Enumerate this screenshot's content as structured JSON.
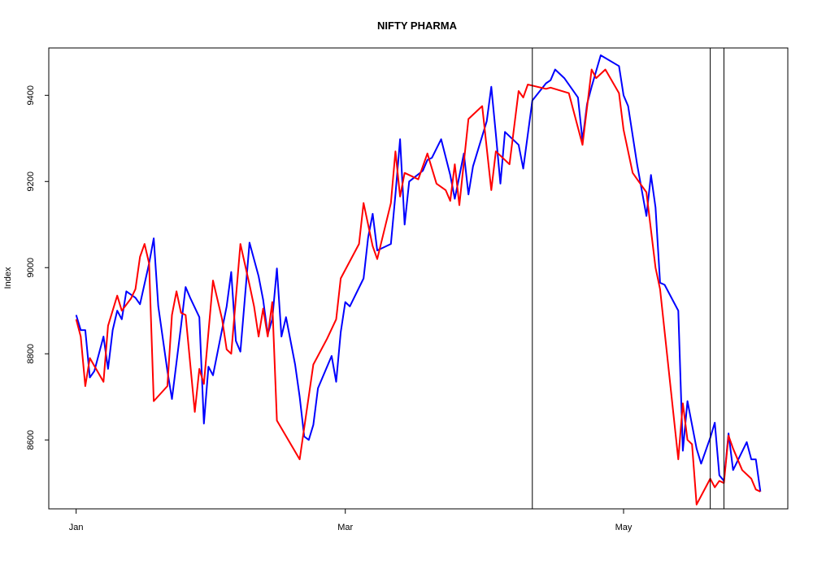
{
  "chart_data": {
    "type": "line",
    "title": "NIFTY PHARMA",
    "ylabel": "Index",
    "xlabel": "",
    "ylim": [
      8440,
      9510
    ],
    "yticks": [
      8600,
      8800,
      9000,
      9200,
      9400
    ],
    "xlim": [
      -6,
      156
    ],
    "xticks": [
      {
        "x": 0,
        "label": "Jan"
      },
      {
        "x": 59,
        "label": "Mar"
      },
      {
        "x": 120,
        "label": "May"
      }
    ],
    "vlines": [
      100,
      139,
      142
    ],
    "series": [
      {
        "color": "#0000ff",
        "points": [
          [
            0,
            8890
          ],
          [
            1,
            8855
          ],
          [
            2,
            8855
          ],
          [
            3,
            8745
          ],
          [
            4,
            8760
          ],
          [
            6,
            8840
          ],
          [
            7,
            8765
          ],
          [
            8,
            8855
          ],
          [
            9,
            8900
          ],
          [
            10,
            8880
          ],
          [
            11,
            8945
          ],
          [
            13,
            8930
          ],
          [
            14,
            8915
          ],
          [
            16,
            9010
          ],
          [
            17,
            9068
          ],
          [
            18,
            8910
          ],
          [
            20,
            8760
          ],
          [
            21,
            8695
          ],
          [
            23,
            8865
          ],
          [
            24,
            8955
          ],
          [
            25,
            8930
          ],
          [
            27,
            8885
          ],
          [
            28,
            8638
          ],
          [
            29,
            8770
          ],
          [
            30,
            8750
          ],
          [
            33,
            8910
          ],
          [
            34,
            8990
          ],
          [
            35,
            8830
          ],
          [
            36,
            8805
          ],
          [
            38,
            9058
          ],
          [
            40,
            8980
          ],
          [
            41,
            8925
          ],
          [
            42,
            8845
          ],
          [
            43,
            8880
          ],
          [
            44,
            8998
          ],
          [
            45,
            8840
          ],
          [
            46,
            8885
          ],
          [
            48,
            8775
          ],
          [
            49,
            8700
          ],
          [
            50,
            8608
          ],
          [
            51,
            8600
          ],
          [
            52,
            8635
          ],
          [
            53,
            8720
          ],
          [
            55,
            8770
          ],
          [
            56,
            8795
          ],
          [
            57,
            8735
          ],
          [
            58,
            8850
          ],
          [
            59,
            8920
          ],
          [
            60,
            8910
          ],
          [
            63,
            8975
          ],
          [
            64,
            9070
          ],
          [
            65,
            9125
          ],
          [
            66,
            9040
          ],
          [
            69,
            9055
          ],
          [
            70,
            9170
          ],
          [
            71,
            9298
          ],
          [
            72,
            9100
          ],
          [
            73,
            9200
          ],
          [
            76,
            9225
          ],
          [
            77,
            9250
          ],
          [
            78,
            9255
          ],
          [
            80,
            9298
          ],
          [
            82,
            9215
          ],
          [
            83,
            9160
          ],
          [
            85,
            9265
          ],
          [
            86,
            9170
          ],
          [
            87,
            9235
          ],
          [
            90,
            9340
          ],
          [
            91,
            9420
          ],
          [
            92,
            9310
          ],
          [
            93,
            9195
          ],
          [
            94,
            9315
          ],
          [
            97,
            9285
          ],
          [
            98,
            9230
          ],
          [
            100,
            9388
          ],
          [
            103,
            9428
          ],
          [
            104,
            9435
          ],
          [
            105,
            9460
          ],
          [
            107,
            9440
          ],
          [
            110,
            9395
          ],
          [
            111,
            9295
          ],
          [
            112,
            9380
          ],
          [
            113,
            9420
          ],
          [
            115,
            9493
          ],
          [
            119,
            9468
          ],
          [
            120,
            9400
          ],
          [
            121,
            9375
          ],
          [
            123,
            9238
          ],
          [
            124,
            9180
          ],
          [
            125,
            9120
          ],
          [
            126,
            9215
          ],
          [
            127,
            9140
          ],
          [
            128,
            8965
          ],
          [
            129,
            8960
          ],
          [
            131,
            8920
          ],
          [
            132,
            8900
          ],
          [
            133,
            8575
          ],
          [
            134,
            8690
          ],
          [
            136,
            8580
          ],
          [
            137,
            8545
          ],
          [
            139,
            8605
          ],
          [
            140,
            8640
          ],
          [
            141,
            8518
          ],
          [
            142,
            8505
          ],
          [
            143,
            8615
          ],
          [
            144,
            8530
          ],
          [
            147,
            8595
          ],
          [
            148,
            8555
          ],
          [
            149,
            8555
          ],
          [
            150,
            8480
          ]
        ]
      },
      {
        "color": "#ff0000",
        "points": [
          [
            0,
            8880
          ],
          [
            1,
            8840
          ],
          [
            2,
            8725
          ],
          [
            3,
            8790
          ],
          [
            6,
            8735
          ],
          [
            7,
            8865
          ],
          [
            9,
            8935
          ],
          [
            10,
            8900
          ],
          [
            12,
            8928
          ],
          [
            13,
            8950
          ],
          [
            14,
            9025
          ],
          [
            15,
            9055
          ],
          [
            16,
            9010
          ],
          [
            17,
            8690
          ],
          [
            20,
            8725
          ],
          [
            21,
            8890
          ],
          [
            22,
            8945
          ],
          [
            23,
            8895
          ],
          [
            24,
            8890
          ],
          [
            26,
            8665
          ],
          [
            27,
            8765
          ],
          [
            28,
            8730
          ],
          [
            30,
            8970
          ],
          [
            32,
            8880
          ],
          [
            33,
            8810
          ],
          [
            34,
            8800
          ],
          [
            36,
            9055
          ],
          [
            38,
            8960
          ],
          [
            39,
            8910
          ],
          [
            40,
            8840
          ],
          [
            41,
            8905
          ],
          [
            42,
            8840
          ],
          [
            43,
            8920
          ],
          [
            44,
            8645
          ],
          [
            49,
            8555
          ],
          [
            52,
            8775
          ],
          [
            55,
            8835
          ],
          [
            57,
            8880
          ],
          [
            58,
            8975
          ],
          [
            62,
            9055
          ],
          [
            63,
            9150
          ],
          [
            65,
            9050
          ],
          [
            66,
            9020
          ],
          [
            69,
            9150
          ],
          [
            70,
            9270
          ],
          [
            71,
            9165
          ],
          [
            72,
            9220
          ],
          [
            75,
            9205
          ],
          [
            77,
            9265
          ],
          [
            79,
            9195
          ],
          [
            81,
            9180
          ],
          [
            82,
            9155
          ],
          [
            83,
            9240
          ],
          [
            84,
            9145
          ],
          [
            86,
            9345
          ],
          [
            89,
            9375
          ],
          [
            91,
            9180
          ],
          [
            92,
            9270
          ],
          [
            95,
            9240
          ],
          [
            97,
            9410
          ],
          [
            98,
            9395
          ],
          [
            99,
            9425
          ],
          [
            103,
            9415
          ],
          [
            104,
            9418
          ],
          [
            108,
            9405
          ],
          [
            111,
            9285
          ],
          [
            113,
            9460
          ],
          [
            114,
            9440
          ],
          [
            116,
            9460
          ],
          [
            119,
            9405
          ],
          [
            120,
            9320
          ],
          [
            122,
            9220
          ],
          [
            124,
            9190
          ],
          [
            125,
            9175
          ],
          [
            127,
            9000
          ],
          [
            128,
            8950
          ],
          [
            132,
            8555
          ],
          [
            133,
            8685
          ],
          [
            134,
            8600
          ],
          [
            135,
            8590
          ],
          [
            136,
            8450
          ],
          [
            138,
            8490
          ],
          [
            139,
            8510
          ],
          [
            140,
            8490
          ],
          [
            141,
            8505
          ],
          [
            142,
            8500
          ],
          [
            143,
            8610
          ],
          [
            144,
            8580
          ],
          [
            146,
            8530
          ],
          [
            148,
            8510
          ],
          [
            149,
            8485
          ],
          [
            150,
            8480
          ]
        ]
      }
    ]
  }
}
